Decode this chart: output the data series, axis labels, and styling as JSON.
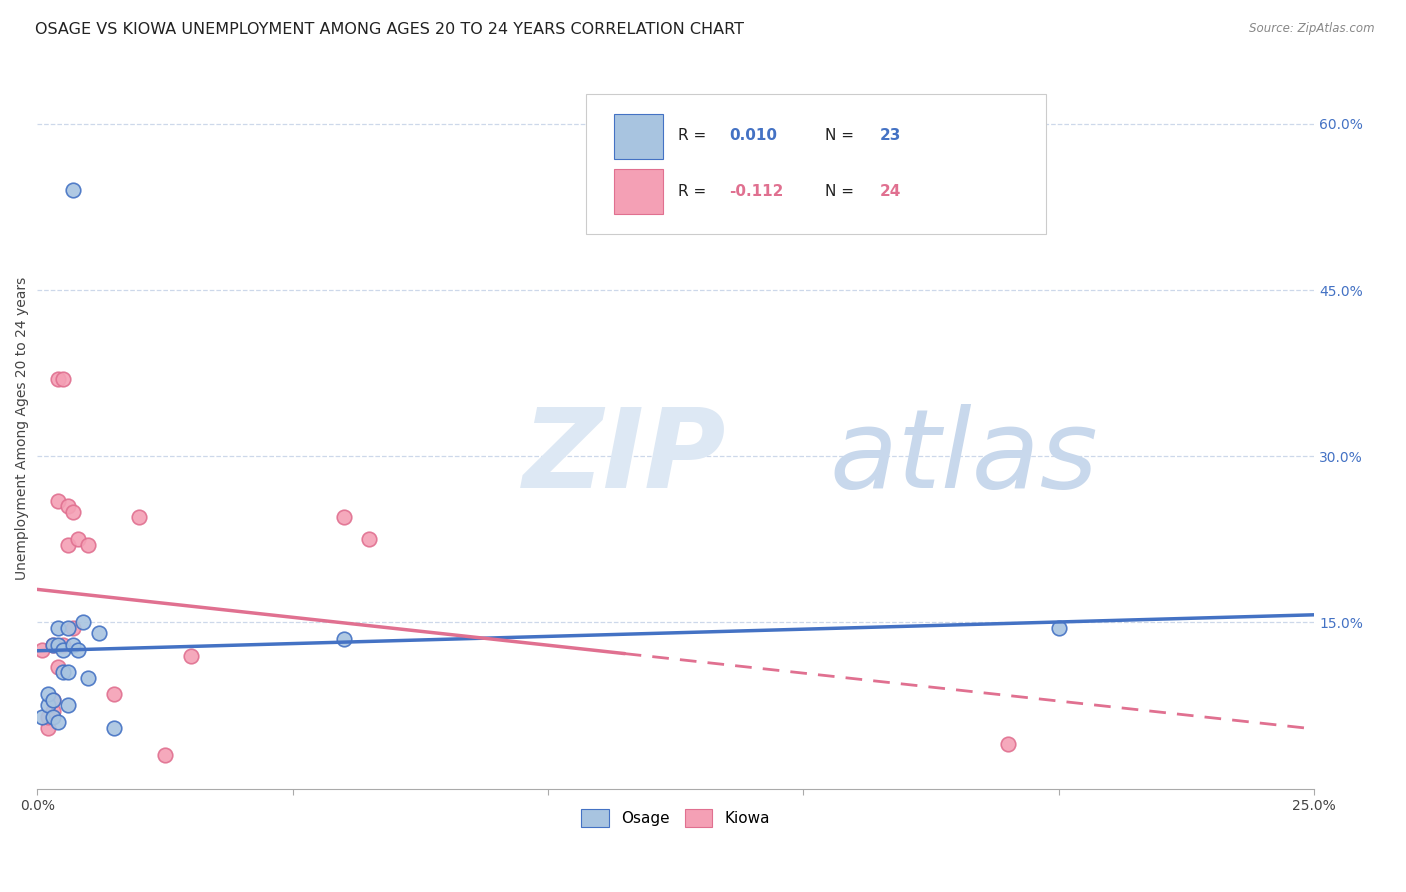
{
  "title": "OSAGE VS KIOWA UNEMPLOYMENT AMONG AGES 20 TO 24 YEARS CORRELATION CHART",
  "source": "Source: ZipAtlas.com",
  "ylabel": "Unemployment Among Ages 20 to 24 years",
  "xlim": [
    0.0,
    0.25
  ],
  "ylim": [
    0.0,
    0.65
  ],
  "color_osage": "#a8c4e0",
  "color_kiowa": "#f4a0b5",
  "color_osage_line": "#4472c4",
  "color_kiowa_line": "#e07090",
  "background_color": "#ffffff",
  "grid_color": "#c8d4e8",
  "title_fontsize": 11.5,
  "axis_label_fontsize": 10,
  "tick_fontsize": 10,
  "marker_size": 110,
  "osage_x": [
    0.001,
    0.002,
    0.002,
    0.003,
    0.003,
    0.003,
    0.004,
    0.004,
    0.004,
    0.005,
    0.005,
    0.006,
    0.006,
    0.006,
    0.007,
    0.007,
    0.008,
    0.009,
    0.01,
    0.012,
    0.015,
    0.06,
    0.2
  ],
  "osage_y": [
    0.065,
    0.075,
    0.085,
    0.065,
    0.08,
    0.13,
    0.13,
    0.145,
    0.06,
    0.105,
    0.125,
    0.105,
    0.145,
    0.075,
    0.13,
    0.54,
    0.125,
    0.15,
    0.1,
    0.14,
    0.055,
    0.135,
    0.145
  ],
  "kiowa_x": [
    0.001,
    0.002,
    0.002,
    0.003,
    0.003,
    0.003,
    0.004,
    0.004,
    0.004,
    0.005,
    0.005,
    0.006,
    0.006,
    0.007,
    0.007,
    0.008,
    0.01,
    0.015,
    0.02,
    0.025,
    0.03,
    0.06,
    0.065,
    0.19
  ],
  "kiowa_y": [
    0.125,
    0.055,
    0.065,
    0.07,
    0.13,
    0.08,
    0.26,
    0.37,
    0.11,
    0.13,
    0.37,
    0.22,
    0.255,
    0.145,
    0.25,
    0.225,
    0.22,
    0.085,
    0.245,
    0.03,
    0.12,
    0.245,
    0.225,
    0.04
  ],
  "ytick_pos": [
    0.15,
    0.3,
    0.45,
    0.6
  ],
  "ytick_labels": [
    "15.0%",
    "30.0%",
    "45.0%",
    "60.0%"
  ],
  "xtick_pos": [
    0.0,
    0.05,
    0.1,
    0.15,
    0.2,
    0.25
  ],
  "xtick_labels": [
    "0.0%",
    "",
    "",
    "",
    "",
    "25.0%"
  ]
}
